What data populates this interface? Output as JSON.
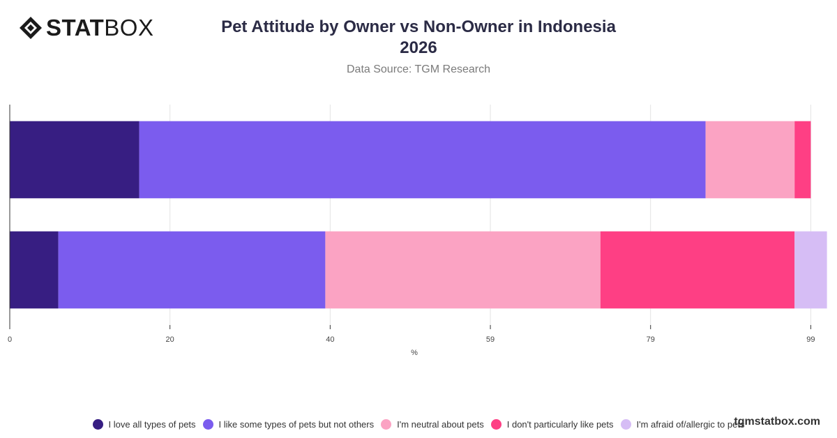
{
  "logo": {
    "bold": "STAT",
    "light": "BOX",
    "icon": "statbox-diamond-logo-icon"
  },
  "header": {
    "title_line1": "Pet Attitude by Owner vs Non-Owner in Indonesia",
    "title_line2": "2026",
    "subtitle": "Data Source: TGM Research"
  },
  "watermark": "tgmstatbox.com",
  "colors": {
    "love_all": "#371E82",
    "like_some": "#7B5CEE",
    "neutral": "#FBA3C3",
    "dont_like": "#FE3F84",
    "afraid": "#D6BDF5",
    "grid": "#e3e3e3",
    "axis": "#333333"
  },
  "chart_data": {
    "type": "bar",
    "orientation": "horizontal",
    "stacked": true,
    "title": "Pet Attitude by Owner vs Non-Owner in Indonesia 2026",
    "subtitle": "Data Source: TGM Research",
    "xlabel": "%",
    "ylabel": "",
    "xlim": [
      0,
      100
    ],
    "x_ticks": [
      "0",
      "20",
      "40",
      "59",
      "79",
      "99"
    ],
    "x_tick_values": [
      0,
      19.8,
      39.6,
      59.4,
      79.2,
      99
    ],
    "grid": true,
    "legend_position": "bottom",
    "categories": [
      "",
      ""
    ],
    "series": [
      {
        "name": "I love all types of pets",
        "color": "#371E82",
        "values": [
          16,
          6
        ]
      },
      {
        "name": "I like some types of pets but not others",
        "color": "#7B5CEE",
        "values": [
          70,
          33
        ]
      },
      {
        "name": "I'm neutral about pets",
        "color": "#FBA3C3",
        "values": [
          11,
          34
        ]
      },
      {
        "name": "I don't particularly like pets",
        "color": "#FE3F84",
        "values": [
          2,
          24
        ]
      },
      {
        "name": "I'm afraid of/allergic to pets",
        "color": "#D6BDF5",
        "values": [
          0,
          4
        ]
      }
    ]
  }
}
